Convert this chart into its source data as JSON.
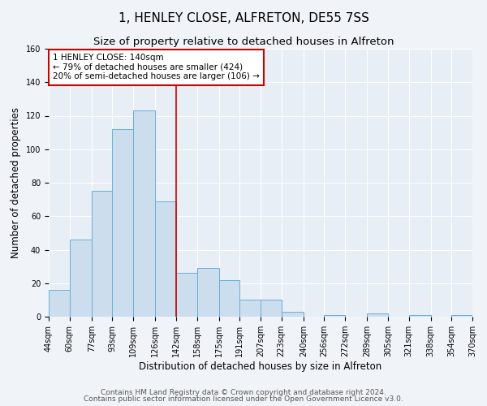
{
  "title": "1, HENLEY CLOSE, ALFRETON, DE55 7SS",
  "subtitle": "Size of property relative to detached houses in Alfreton",
  "xlabel": "Distribution of detached houses by size in Alfreton",
  "ylabel": "Number of detached properties",
  "bar_color": "#ccdded",
  "bar_edge_color": "#6aaed6",
  "background_color": "#f0f4f8",
  "plot_bg_color": "#e8eef5",
  "bin_labels": [
    "44sqm",
    "60sqm",
    "77sqm",
    "93sqm",
    "109sqm",
    "126sqm",
    "142sqm",
    "158sqm",
    "175sqm",
    "191sqm",
    "207sqm",
    "223sqm",
    "240sqm",
    "256sqm",
    "272sqm",
    "289sqm",
    "305sqm",
    "321sqm",
    "338sqm",
    "354sqm",
    "370sqm"
  ],
  "bar_values": [
    16,
    46,
    75,
    112,
    123,
    69,
    26,
    29,
    22,
    10,
    10,
    3,
    0,
    1,
    0,
    2,
    0,
    1,
    0,
    1
  ],
  "bin_edges": [
    44,
    60,
    77,
    93,
    109,
    126,
    142,
    158,
    175,
    191,
    207,
    223,
    240,
    256,
    272,
    289,
    305,
    321,
    338,
    354,
    370
  ],
  "ylim": [
    0,
    160
  ],
  "yticks": [
    0,
    20,
    40,
    60,
    80,
    100,
    120,
    140,
    160
  ],
  "vline_x": 142,
  "vline_color": "#cc0000",
  "annotation_text": "1 HENLEY CLOSE: 140sqm\n← 79% of detached houses are smaller (424)\n20% of semi-detached houses are larger (106) →",
  "annotation_box_color": "#ffffff",
  "annotation_box_edge": "#cc0000",
  "footer_line1": "Contains HM Land Registry data © Crown copyright and database right 2024.",
  "footer_line2": "Contains public sector information licensed under the Open Government Licence v3.0.",
  "grid_color": "#ffffff",
  "title_fontsize": 11,
  "subtitle_fontsize": 9.5,
  "axis_label_fontsize": 8.5,
  "tick_fontsize": 7,
  "annotation_fontsize": 7.5,
  "footer_fontsize": 6.5
}
